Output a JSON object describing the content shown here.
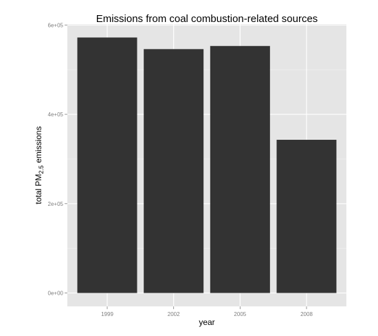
{
  "chart_data": {
    "type": "bar",
    "title": "Emissions from coal combustion-related sources",
    "xlabel": "year",
    "ylabel": {
      "prefix": "total PM",
      "subscript": "2.5",
      "suffix": " emissions"
    },
    "categories": [
      "1999",
      "2002",
      "2005",
      "2008"
    ],
    "values": [
      572000,
      546000,
      553000,
      343000
    ],
    "ylim": [
      -30000,
      602000
    ],
    "yticks": [
      0,
      200000,
      400000,
      600000
    ],
    "ytick_labels": [
      "0e+00",
      "2e+05",
      "4e+05",
      "6e+05"
    ],
    "grid": true,
    "legend": "none",
    "colors": {
      "panel": "#e5e5e5",
      "grid_major": "#ffffff",
      "grid_minor": "#f2f2f2",
      "bar": "#333333",
      "tick": "#7f7f7f"
    }
  }
}
